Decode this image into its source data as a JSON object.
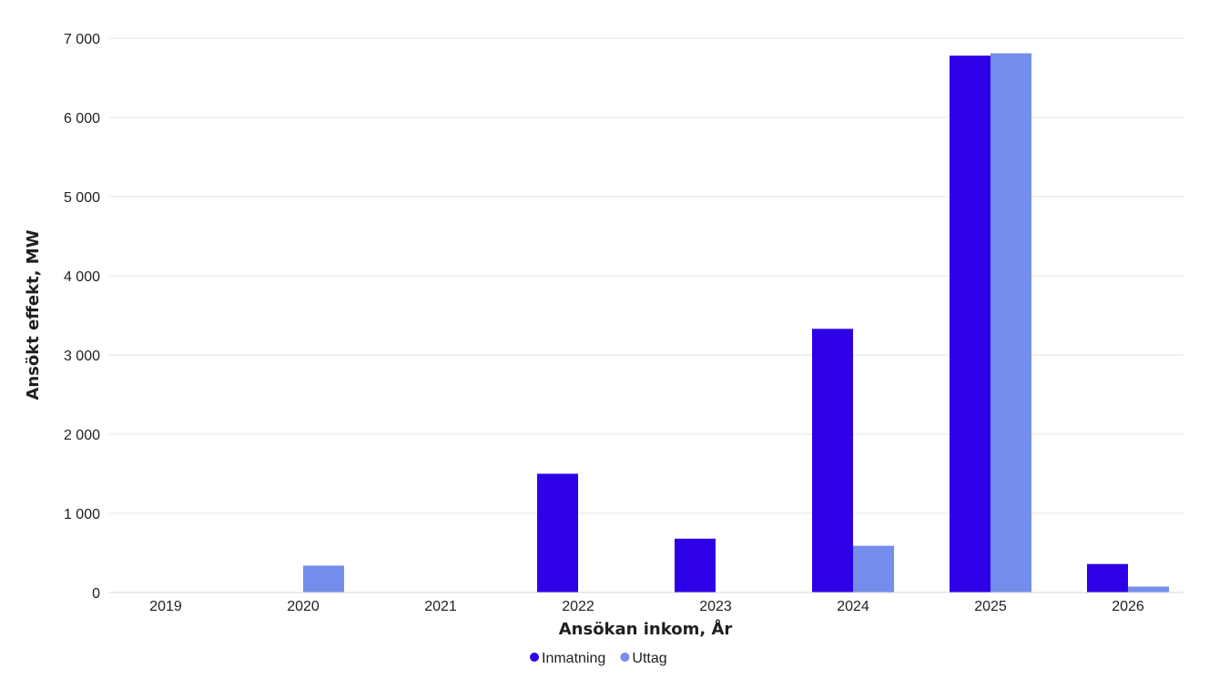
{
  "chart_data": {
    "type": "bar",
    "categories": [
      "2019",
      "2020",
      "2021",
      "2022",
      "2023",
      "2024",
      "2025",
      "2026"
    ],
    "series": [
      {
        "name": "Inmatning",
        "color": "#2e00e8",
        "values": [
          0,
          0,
          0,
          1500,
          680,
          3330,
          6780,
          360
        ]
      },
      {
        "name": "Uttag",
        "color": "#758deb",
        "values": [
          0,
          340,
          0,
          0,
          0,
          590,
          6810,
          75
        ]
      }
    ],
    "xlabel": "Ansökan inkom, År",
    "ylabel": "Ansökt effekt, MW",
    "ylim": [
      0,
      7000
    ],
    "yticks": [
      0,
      1000,
      2000,
      3000,
      4000,
      5000,
      6000,
      7000
    ],
    "ytick_labels": [
      "0",
      "1 000",
      "2 000",
      "3 000",
      "4 000",
      "5 000",
      "6 000",
      "7 000"
    ],
    "grid": true,
    "legend_position": "bottom-center"
  }
}
